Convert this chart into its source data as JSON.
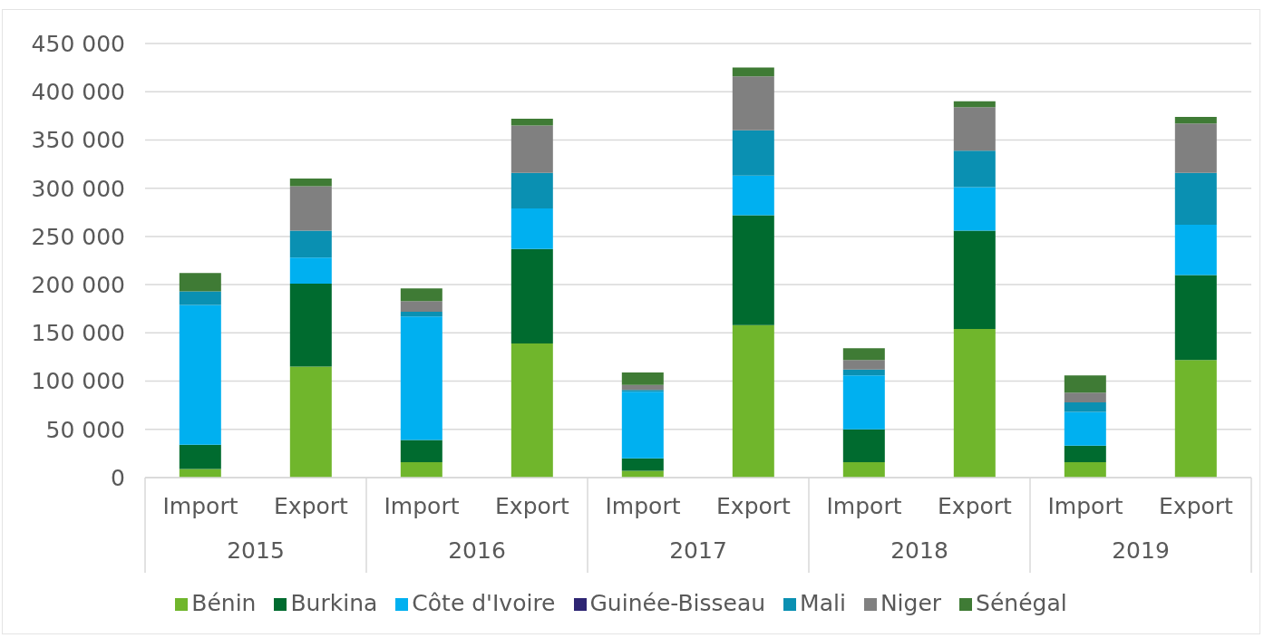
{
  "chart_data": {
    "type": "bar",
    "stacked": true,
    "categories": [
      "Import",
      "Export",
      "Import",
      "Export",
      "Import",
      "Export",
      "Import",
      "Export",
      "Import",
      "Export"
    ],
    "annotations": [
      "2015",
      "2016",
      "2017",
      "2018",
      "2019"
    ],
    "series": [
      {
        "name": "Bénin",
        "color": "#70b62c",
        "values": [
          9000,
          115000,
          16000,
          139000,
          7000,
          158000,
          16000,
          154000,
          16000,
          122000
        ]
      },
      {
        "name": "Burkina",
        "color": "#006b2f",
        "values": [
          25000,
          86000,
          23000,
          98000,
          13000,
          114000,
          34000,
          102000,
          17000,
          88000
        ]
      },
      {
        "name": "Côte d'Ivoire",
        "color": "#00b0f0",
        "values": [
          145000,
          27000,
          128000,
          42000,
          69000,
          41000,
          56000,
          45000,
          35000,
          52000
        ]
      },
      {
        "name": "Guinée-Bisseau",
        "color": "#2e2573",
        "values": [
          0,
          0,
          0,
          0,
          0,
          0,
          0,
          0,
          0,
          0
        ]
      },
      {
        "name": "Mali",
        "color": "#0a90b2",
        "values": [
          14000,
          28000,
          5000,
          37000,
          2000,
          47000,
          6000,
          38000,
          10000,
          54000
        ]
      },
      {
        "name": "Niger",
        "color": "#808080",
        "values": [
          0,
          46000,
          11000,
          49000,
          5000,
          56000,
          10000,
          45000,
          10000,
          51000
        ]
      },
      {
        "name": "Sénégal",
        "color": "#3f7b35",
        "values": [
          19000,
          8000,
          13000,
          7000,
          13000,
          9000,
          12000,
          6000,
          18000,
          7000
        ]
      }
    ],
    "ylim": [
      0,
      450000
    ],
    "yticks": [
      0,
      {
        "value": 50000,
        "label": "50 000"
      },
      {
        "value": 100000,
        "label": "100 000"
      },
      {
        "value": 150000,
        "label": "150 000"
      },
      {
        "value": 200000,
        "label": "200 000"
      },
      {
        "value": 250000,
        "label": "250 000"
      },
      {
        "value": 300000,
        "label": "300 000"
      },
      {
        "value": 350000,
        "label": "350 000"
      },
      {
        "value": 400000,
        "label": "400 000"
      },
      {
        "value": 450000,
        "label": "450 000"
      }
    ],
    "grid": "y",
    "legend": "bottom"
  }
}
